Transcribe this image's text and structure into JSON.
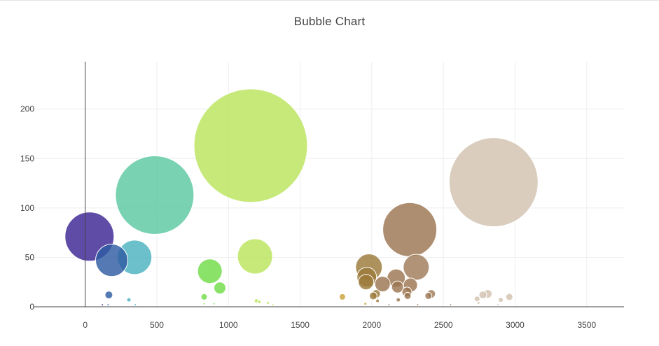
{
  "title": "Bubble Chart",
  "chart_data": {
    "type": "scatter",
    "title": "Bubble Chart",
    "xlabel": "",
    "ylabel": "",
    "xlim": [
      -360,
      3760
    ],
    "ylim": [
      0,
      248
    ],
    "x_ticks": [
      0,
      500,
      1000,
      1500,
      2000,
      2500,
      3000,
      3500
    ],
    "y_ticks": [
      0,
      50,
      100,
      150,
      200
    ],
    "x_tick_labels": [
      "0",
      "500",
      "1000",
      "1500",
      "2000",
      "2500",
      "3000",
      "3500"
    ],
    "y_tick_labels": [
      "0",
      "50",
      "100",
      "150",
      "200"
    ],
    "grid": true,
    "legend": "none",
    "bubble_size_unit": "diameter in chart pixels",
    "bubbles": [
      {
        "x": 2850,
        "y": 126,
        "size": 127,
        "color": "#d2c2b0"
      },
      {
        "x": 1155,
        "y": 163,
        "size": 162,
        "color": "#b9e45c"
      },
      {
        "x": 485,
        "y": 113,
        "size": 112,
        "color": "#5cc8a0"
      },
      {
        "x": 2265,
        "y": 78,
        "size": 77,
        "color": "#9c7550"
      },
      {
        "x": 30,
        "y": 71,
        "size": 70,
        "color": "#3a2593"
      },
      {
        "x": 1185,
        "y": 51,
        "size": 50,
        "color": "#b9e45c"
      },
      {
        "x": 345,
        "y": 50,
        "size": 49,
        "color": "#4ab2c0"
      },
      {
        "x": 185,
        "y": 47,
        "size": 46,
        "color": "#2e5ca2"
      },
      {
        "x": 870,
        "y": 36,
        "size": 35,
        "color": "#72dc48"
      },
      {
        "x": 1980,
        "y": 40,
        "size": 38,
        "color": "#9c7a3a"
      },
      {
        "x": 2310,
        "y": 40,
        "size": 37,
        "color": "#a07c5a"
      },
      {
        "x": 1965,
        "y": 30,
        "size": 28,
        "color": "#9c7a3a"
      },
      {
        "x": 2170,
        "y": 29,
        "size": 26,
        "color": "#9c7550"
      },
      {
        "x": 1960,
        "y": 25,
        "size": 22,
        "color": "#9c7a3a"
      },
      {
        "x": 2075,
        "y": 23,
        "size": 22,
        "color": "#9c7550"
      },
      {
        "x": 2270,
        "y": 22,
        "size": 20,
        "color": "#9c7550"
      },
      {
        "x": 2180,
        "y": 20,
        "size": 17,
        "color": "#9c7550"
      },
      {
        "x": 940,
        "y": 19,
        "size": 17,
        "color": "#72dc48"
      },
      {
        "x": 2245,
        "y": 15,
        "size": 14,
        "color": "#9c7550"
      },
      {
        "x": 2030,
        "y": 13,
        "size": 12,
        "color": "#9c7a3a"
      },
      {
        "x": 2010,
        "y": 11,
        "size": 11,
        "color": "#9c7a3a"
      },
      {
        "x": 2250,
        "y": 11,
        "size": 10,
        "color": "#9c7550"
      },
      {
        "x": 2415,
        "y": 13,
        "size": 12,
        "color": "#a07c5a"
      },
      {
        "x": 2395,
        "y": 11,
        "size": 10,
        "color": "#a07c5a"
      },
      {
        "x": 2810,
        "y": 13,
        "size": 12,
        "color": "#d2c2b0"
      },
      {
        "x": 2775,
        "y": 12,
        "size": 11,
        "color": "#d2c2b0"
      },
      {
        "x": 2960,
        "y": 10,
        "size": 10,
        "color": "#d2c2b0"
      },
      {
        "x": 2735,
        "y": 8,
        "size": 8,
        "color": "#d2c2b0"
      },
      {
        "x": 2900,
        "y": 7,
        "size": 7,
        "color": "#d2c2b0"
      },
      {
        "x": 165,
        "y": 12,
        "size": 11,
        "color": "#2e5ca2"
      },
      {
        "x": 305,
        "y": 7,
        "size": 6,
        "color": "#4ab2c0"
      },
      {
        "x": 830,
        "y": 10,
        "size": 9,
        "color": "#72dc48"
      },
      {
        "x": 1795,
        "y": 10,
        "size": 9,
        "color": "#c9a33a"
      },
      {
        "x": 2185,
        "y": 7,
        "size": 6,
        "color": "#9c7550"
      },
      {
        "x": 2040,
        "y": 6,
        "size": 5,
        "color": "#9c7a3a"
      },
      {
        "x": 1195,
        "y": 6,
        "size": 6,
        "color": "#b9e45c"
      },
      {
        "x": 1215,
        "y": 5,
        "size": 5,
        "color": "#b9e45c"
      },
      {
        "x": 1275,
        "y": 4,
        "size": 4,
        "color": "#b9e45c"
      },
      {
        "x": 2745,
        "y": 4,
        "size": 4,
        "color": "#d2c2b0"
      },
      {
        "x": 1955,
        "y": 3,
        "size": 4,
        "color": "#c9a33a"
      },
      {
        "x": 830,
        "y": 3,
        "size": 3,
        "color": "#72dc48"
      },
      {
        "x": 900,
        "y": 3,
        "size": 3,
        "color": "#72dc48"
      },
      {
        "x": 120,
        "y": 2,
        "size": 3,
        "color": "#3a2593"
      },
      {
        "x": 160,
        "y": 2,
        "size": 3,
        "color": "#2e5ca2"
      },
      {
        "x": 350,
        "y": 2,
        "size": 3,
        "color": "#4ab2c0"
      },
      {
        "x": 1310,
        "y": 2,
        "size": 3,
        "color": "#b9e45c"
      },
      {
        "x": 2120,
        "y": 2,
        "size": 3,
        "color": "#9c7550"
      },
      {
        "x": 2320,
        "y": 2,
        "size": 3,
        "color": "#9c7550"
      },
      {
        "x": 2550,
        "y": 2,
        "size": 3,
        "color": "#a07c5a"
      },
      {
        "x": 2880,
        "y": 2,
        "size": 3,
        "color": "#d2c2b0"
      }
    ]
  }
}
